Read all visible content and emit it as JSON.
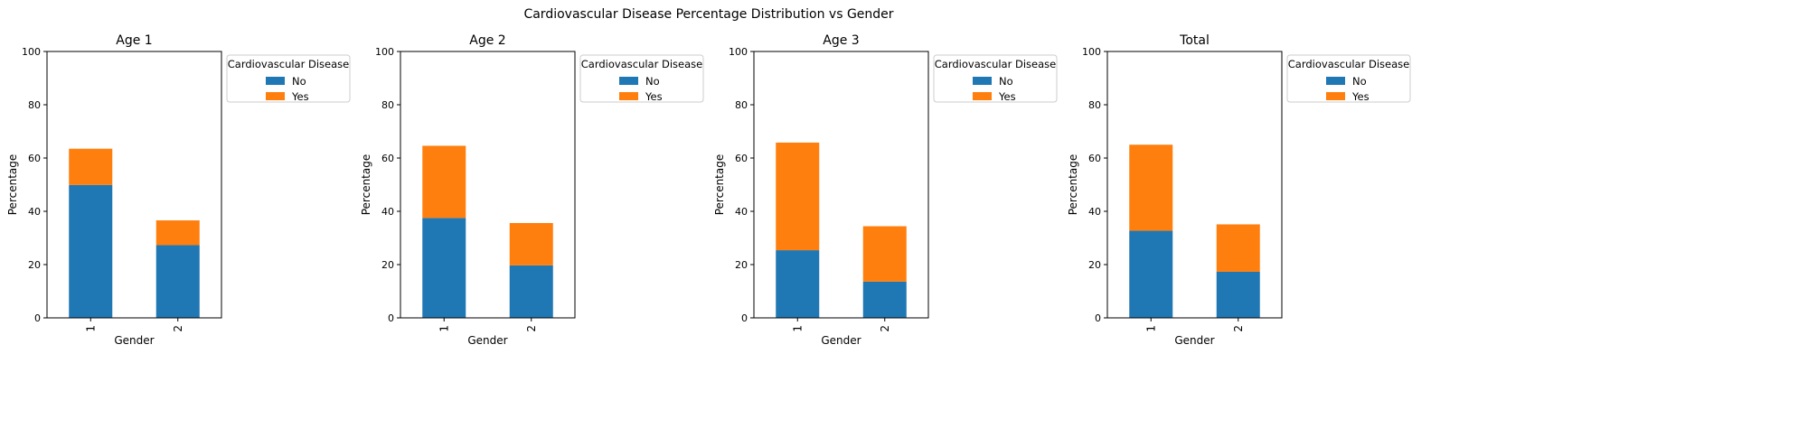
{
  "suptitle": "Cardiovascular Disease Percentage Distribution vs Gender",
  "colors": {
    "No": "#1f77b4",
    "Yes": "#ff7f0e"
  },
  "chart_data": [
    {
      "type": "bar",
      "stacked": true,
      "title": "Age 1",
      "xlabel": "Gender",
      "ylabel": "Percentage",
      "ylim": [
        0,
        100
      ],
      "yticks": [
        0,
        20,
        40,
        60,
        80,
        100
      ],
      "categories": [
        "1",
        "2"
      ],
      "series": [
        {
          "name": "No",
          "values": [
            49.9,
            27.3
          ]
        },
        {
          "name": "Yes",
          "values": [
            13.6,
            9.3
          ]
        }
      ],
      "legend": {
        "title": "Cardiovascular Disease",
        "position": "outside upper right"
      }
    },
    {
      "type": "bar",
      "stacked": true,
      "title": "Age 2",
      "xlabel": "Gender",
      "ylabel": "Percentage",
      "ylim": [
        0,
        100
      ],
      "yticks": [
        0,
        20,
        40,
        60,
        80,
        100
      ],
      "categories": [
        "1",
        "2"
      ],
      "series": [
        {
          "name": "No",
          "values": [
            37.5,
            19.7
          ]
        },
        {
          "name": "Yes",
          "values": [
            27.1,
            15.9
          ]
        }
      ],
      "legend": {
        "title": "Cardiovascular Disease",
        "position": "outside upper right"
      }
    },
    {
      "type": "bar",
      "stacked": true,
      "title": "Age 3",
      "xlabel": "Gender",
      "ylabel": "Percentage",
      "ylim": [
        0,
        100
      ],
      "yticks": [
        0,
        20,
        40,
        60,
        80,
        100
      ],
      "categories": [
        "1",
        "2"
      ],
      "series": [
        {
          "name": "No",
          "values": [
            25.4,
            13.6
          ]
        },
        {
          "name": "Yes",
          "values": [
            40.4,
            20.8
          ]
        }
      ],
      "legend": {
        "title": "Cardiovascular Disease",
        "position": "outside upper right"
      }
    },
    {
      "type": "bar",
      "stacked": true,
      "title": "Total",
      "xlabel": "Gender",
      "ylabel": "Percentage",
      "ylim": [
        0,
        100
      ],
      "yticks": [
        0,
        20,
        40,
        60,
        80,
        100
      ],
      "categories": [
        "1",
        "2"
      ],
      "series": [
        {
          "name": "No",
          "values": [
            32.7,
            17.3
          ]
        },
        {
          "name": "Yes",
          "values": [
            32.3,
            17.8
          ]
        }
      ],
      "legend": {
        "title": "Cardiovascular Disease",
        "position": "outside upper right"
      }
    }
  ]
}
